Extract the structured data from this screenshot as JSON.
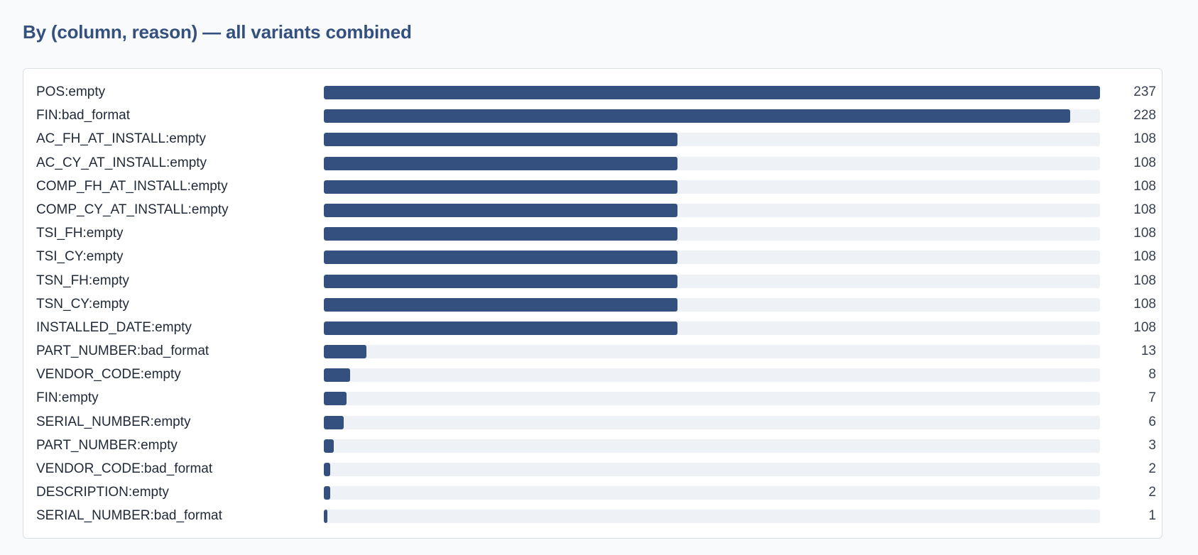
{
  "section": {
    "title": "By (column, reason) — all variants combined"
  },
  "colors": {
    "bar": "#34507f",
    "track": "#eef1f6",
    "title": "#34507f"
  },
  "chart_data": {
    "type": "bar",
    "orientation": "horizontal",
    "title": "By (column, reason) — all variants combined",
    "xlim": [
      0,
      237
    ],
    "grid": false,
    "categories": [
      "POS:empty",
      "FIN:bad_format",
      "AC_FH_AT_INSTALL:empty",
      "AC_CY_AT_INSTALL:empty",
      "COMP_FH_AT_INSTALL:empty",
      "COMP_CY_AT_INSTALL:empty",
      "TSI_FH:empty",
      "TSI_CY:empty",
      "TSN_FH:empty",
      "TSN_CY:empty",
      "INSTALLED_DATE:empty",
      "PART_NUMBER:bad_format",
      "VENDOR_CODE:empty",
      "FIN:empty",
      "SERIAL_NUMBER:empty",
      "PART_NUMBER:empty",
      "VENDOR_CODE:bad_format",
      "DESCRIPTION:empty",
      "SERIAL_NUMBER:bad_format"
    ],
    "values": [
      237,
      228,
      108,
      108,
      108,
      108,
      108,
      108,
      108,
      108,
      108,
      13,
      8,
      7,
      6,
      3,
      2,
      2,
      1
    ]
  }
}
